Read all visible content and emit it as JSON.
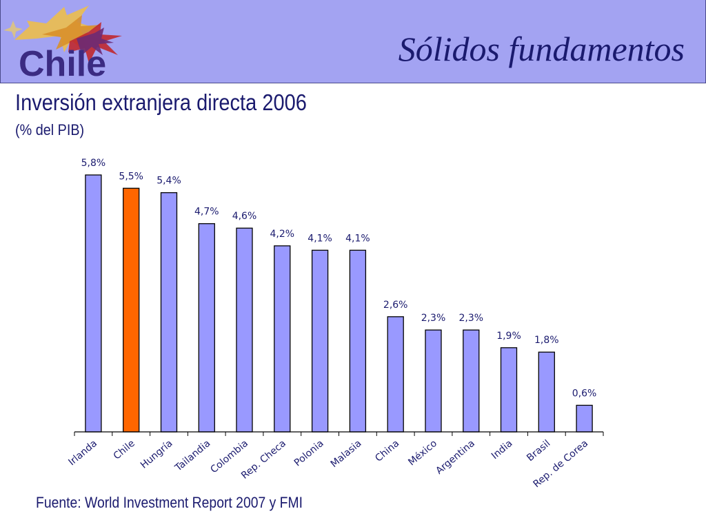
{
  "header": {
    "logo_text": "Chile",
    "title": "Sólidos fundamentos"
  },
  "chart_data": {
    "type": "bar",
    "title": "Inversión extranjera directa 2006",
    "subtitle": "(% del PIB)",
    "categories": [
      "Irlanda",
      "Chile",
      "Hungría",
      "Tailandia",
      "Colombia",
      "Rep. Checa",
      "Polonia",
      "Malasia",
      "China",
      "México",
      "Argentina",
      "India",
      "Brasil",
      "Rep. de Corea"
    ],
    "values": [
      5.8,
      5.5,
      5.4,
      4.7,
      4.6,
      4.2,
      4.1,
      4.1,
      2.6,
      2.3,
      2.3,
      1.9,
      1.8,
      0.6
    ],
    "data_labels": [
      "5,8%",
      "5,5%",
      "5,4%",
      "4,7%",
      "4,6%",
      "4,2%",
      "4,1%",
      "4,1%",
      "2,6%",
      "2,3%",
      "2,3%",
      "1,9%",
      "1,8%",
      "0,6%"
    ],
    "highlight": "Chile",
    "ylim": [
      0,
      6
    ],
    "grid": false,
    "legend": "none",
    "colors": {
      "bar": "#9999ff",
      "highlight": "#ff6600",
      "outline": "#000000",
      "label": "#1a1a6e"
    }
  },
  "footer": {
    "source": "Fuente: World Investment Report 2007 y FMI"
  },
  "colors": {
    "header_bg": "#a3a3f2",
    "title": "#1a1a6e",
    "logo": "#3b2b82"
  }
}
